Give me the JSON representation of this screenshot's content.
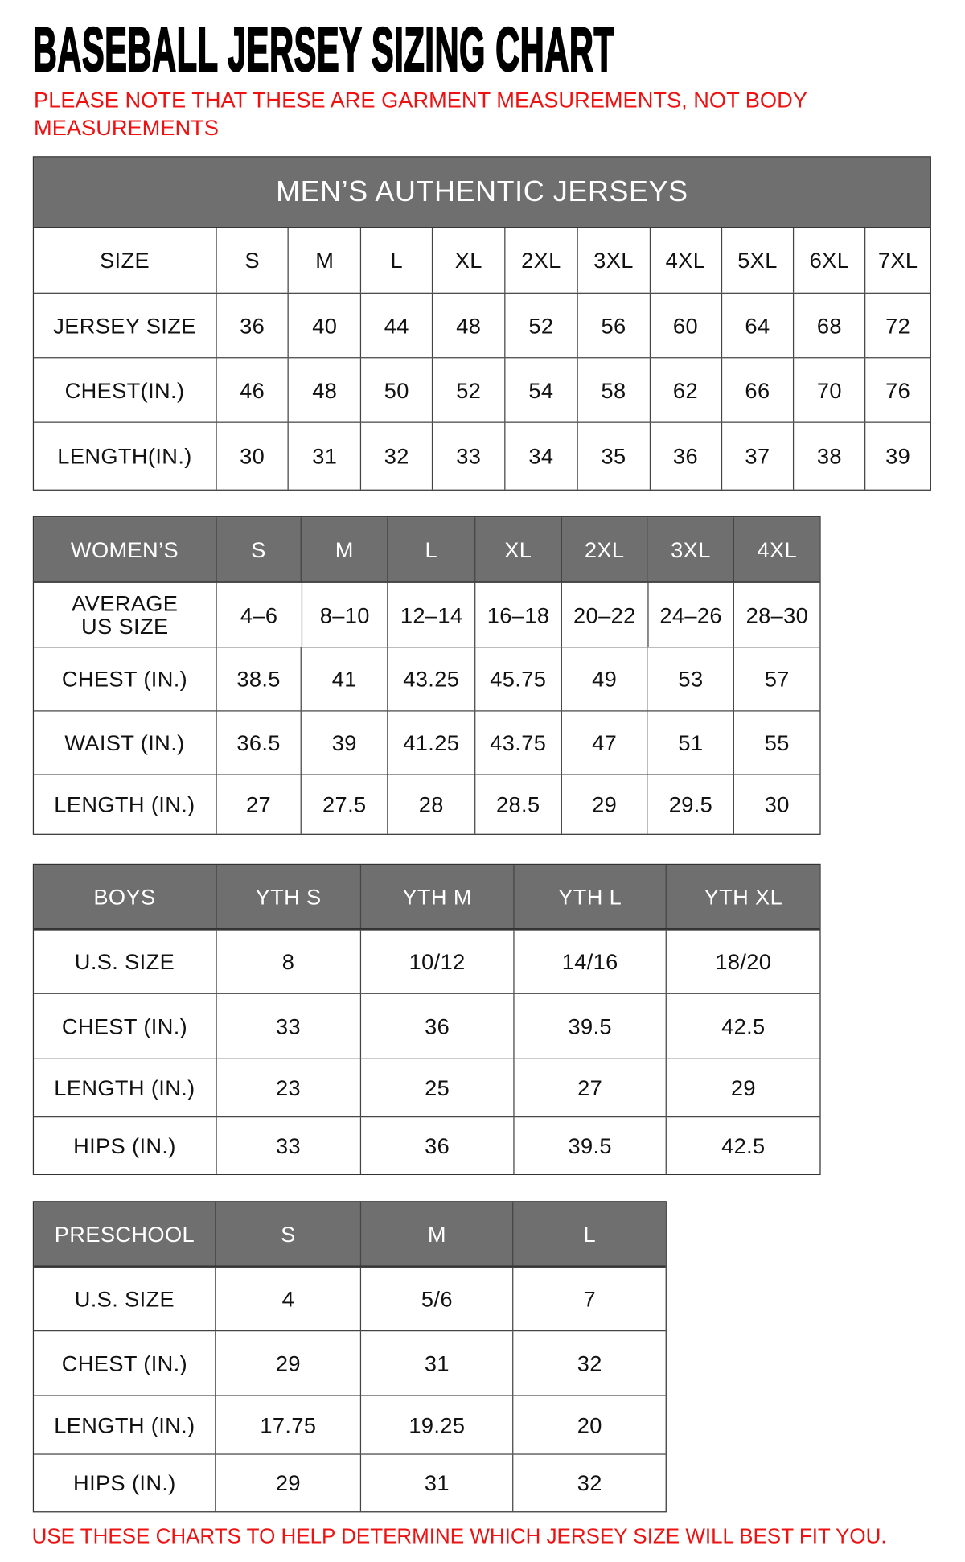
{
  "title": "BASEBALL JERSEY SIZING CHART",
  "note": "PLEASE NOTE THAT THESE ARE GARMENT MEASUREMENTS, NOT BODY MEASUREMENTS",
  "footer": "USE THESE CHARTS TO HELP DETERMINE WHICH JERSEY SIZE WILL BEST FIT YOU.",
  "colors": {
    "header_bg": "#6f6f6f",
    "note_red": "#ee1111"
  },
  "tables": [
    {
      "id": "mens",
      "banner": "MEN’S AUTHENTIC JERSEYS",
      "header_shaded": false,
      "header": [
        "SIZE",
        "S",
        "M",
        "L",
        "XL",
        "2XL",
        "3XL",
        "4XL",
        "5XL",
        "6XL",
        "7XL"
      ],
      "rows": [
        [
          "JERSEY SIZE",
          "36",
          "40",
          "44",
          "48",
          "52",
          "56",
          "60",
          "64",
          "68",
          "72"
        ],
        [
          "CHEST(IN.)",
          "46",
          "48",
          "50",
          "52",
          "54",
          "58",
          "62",
          "66",
          "70",
          "76"
        ],
        [
          "LENGTH(IN.)",
          "30",
          "31",
          "32",
          "33",
          "34",
          "35",
          "36",
          "37",
          "38",
          "39"
        ]
      ]
    },
    {
      "id": "womens",
      "header_shaded": true,
      "header": [
        "WOMEN’S",
        "S",
        "M",
        "L",
        "XL",
        "2XL",
        "3XL",
        "4XL"
      ],
      "rows": [
        [
          "AVERAGE US SIZE",
          "4–6",
          "8–10",
          "12–14",
          "16–18",
          "20–22",
          "24–26",
          "28–30"
        ],
        [
          "CHEST (IN.)",
          "38.5",
          "41",
          "43.25",
          "45.75",
          "49",
          "53",
          "57"
        ],
        [
          "WAIST (IN.)",
          "36.5",
          "39",
          "41.25",
          "43.75",
          "47",
          "51",
          "55"
        ],
        [
          "LENGTH (IN.)",
          "27",
          "27.5",
          "28",
          "28.5",
          "29",
          "29.5",
          "30"
        ]
      ]
    },
    {
      "id": "boys",
      "header_shaded": true,
      "header": [
        "BOYS",
        "YTH S",
        "YTH M",
        "YTH L",
        "YTH XL"
      ],
      "rows": [
        [
          "U.S. SIZE",
          "8",
          "10/12",
          "14/16",
          "18/20"
        ],
        [
          "CHEST (IN.)",
          "33",
          "36",
          "39.5",
          "42.5"
        ],
        [
          "LENGTH (IN.)",
          "23",
          "25",
          "27",
          "29"
        ],
        [
          "HIPS (IN.)",
          "33",
          "36",
          "39.5",
          "42.5"
        ]
      ]
    },
    {
      "id": "preschool",
      "header_shaded": true,
      "header": [
        "PRESCHOOL",
        "S",
        "M",
        "L"
      ],
      "rows": [
        [
          "U.S. SIZE",
          "4",
          "5/6",
          "7"
        ],
        [
          "CHEST (IN.)",
          "29",
          "31",
          "32"
        ],
        [
          "LENGTH (IN.)",
          "17.75",
          "19.25",
          "20"
        ],
        [
          "HIPS (IN.)",
          "29",
          "31",
          "32"
        ]
      ]
    }
  ]
}
